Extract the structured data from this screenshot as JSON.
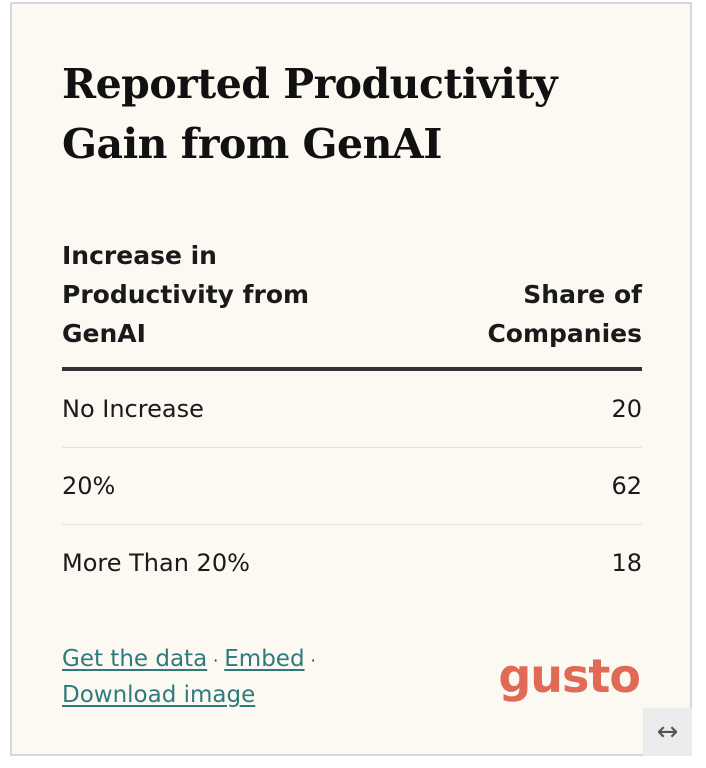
{
  "title": "Reported Productivity Gain from GenAI",
  "chart_data": {
    "type": "table",
    "columns": [
      "Increase in Productivity from GenAI",
      "Share of Companies"
    ],
    "rows": [
      {
        "label": "No Increase",
        "value": 20
      },
      {
        "label": "20%",
        "value": 62
      },
      {
        "label": "More Than 20%",
        "value": 18
      }
    ]
  },
  "table": {
    "header_left": "Increase in Productivity from GenAI",
    "header_right": "Share of Companies",
    "rows": [
      {
        "label": "No Increase",
        "value": "20"
      },
      {
        "label": "20%",
        "value": "62"
      },
      {
        "label": "More Than 20%",
        "value": "18"
      }
    ]
  },
  "footer": {
    "get_data": "Get the data",
    "embed": "Embed",
    "download": "Download image",
    "separator": "·"
  },
  "logo_text": "gusto",
  "resize_icon": "↔",
  "colors": {
    "background": "#fcf8f2",
    "link": "#2e7b7d",
    "logo": "#e06a55",
    "rule": "#333333"
  }
}
